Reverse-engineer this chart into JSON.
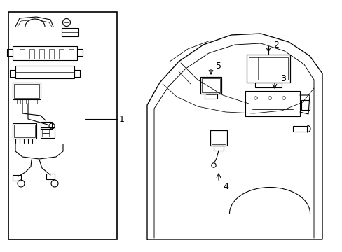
{
  "bg_color": "#ffffff",
  "line_color": "#000000",
  "label_color": "#000000",
  "fig_width": 4.89,
  "fig_height": 3.6,
  "dpi": 100,
  "lw": 0.8
}
